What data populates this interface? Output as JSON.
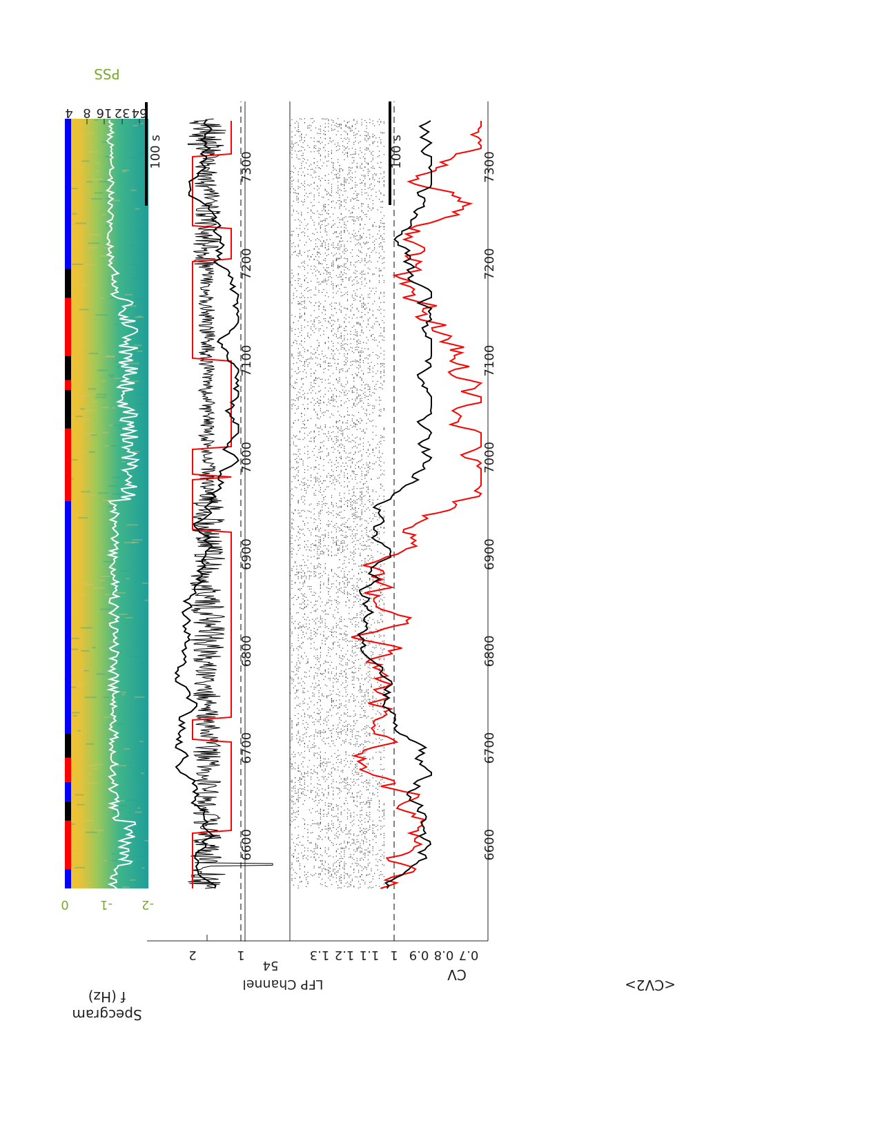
{
  "colors": {
    "pss": "#77ac30",
    "cv_black": "#000000",
    "cv_red": "#ff0000",
    "state_blue": "#0000ff",
    "state_red": "#ff0000",
    "state_black": "#000000",
    "spec_low": "#f4c430",
    "spec_high": "#2aa89a"
  },
  "chart_data": [
    {
      "type": "heatmap",
      "panel": "spectrogram",
      "ylabel": "Specgram\nf (Hz)",
      "ytick_labels": [
        "4",
        "8",
        "16",
        "32",
        "64"
      ],
      "right_axis_label": "PSS",
      "right_ytick_labels": [
        "0",
        "-1",
        "-2"
      ],
      "scalebar_label": "100 s",
      "state_bar": [
        {
          "state": "blue",
          "from": 6555,
          "to": 6575
        },
        {
          "state": "red",
          "from": 6575,
          "to": 6625
        },
        {
          "state": "black",
          "from": 6625,
          "to": 6645
        },
        {
          "state": "blue",
          "from": 6645,
          "to": 6665
        },
        {
          "state": "red",
          "from": 6665,
          "to": 6690
        },
        {
          "state": "black",
          "from": 6690,
          "to": 6715
        },
        {
          "state": "blue",
          "from": 6715,
          "to": 6955
        },
        {
          "state": "red",
          "from": 6955,
          "to": 7030
        },
        {
          "state": "black",
          "from": 7030,
          "to": 7070
        },
        {
          "state": "red",
          "from": 7070,
          "to": 7080
        },
        {
          "state": "black",
          "from": 7080,
          "to": 7105
        },
        {
          "state": "red",
          "from": 7105,
          "to": 7165
        },
        {
          "state": "black",
          "from": 7165,
          "to": 7195
        },
        {
          "state": "blue",
          "from": 7195,
          "to": 7350
        }
      ]
    },
    {
      "type": "line",
      "panel": "lfp_raster",
      "ylabel": "LFP Channel",
      "ytick_labels": [
        "54"
      ],
      "scalebar_label": "100 s"
    },
    {
      "type": "line",
      "panel": "cv",
      "ylabel": "CV",
      "ytick_labels": [
        "1",
        "2"
      ],
      "xtick_labels": [
        "6600",
        "6700",
        "6800",
        "6900",
        "7000",
        "7100",
        "7200",
        "7300"
      ],
      "reference_line": 1
    },
    {
      "type": "line",
      "panel": "cv2",
      "ylabel": "<CV2>",
      "ytick_labels": [
        "0.7",
        "0.8",
        "0.9",
        "1",
        "1.1",
        "1.2",
        "1.3"
      ],
      "xtick_labels": [
        "6600",
        "6700",
        "6800",
        "6900",
        "7000",
        "7100",
        "7200",
        "7300"
      ],
      "reference_line": 1
    }
  ]
}
